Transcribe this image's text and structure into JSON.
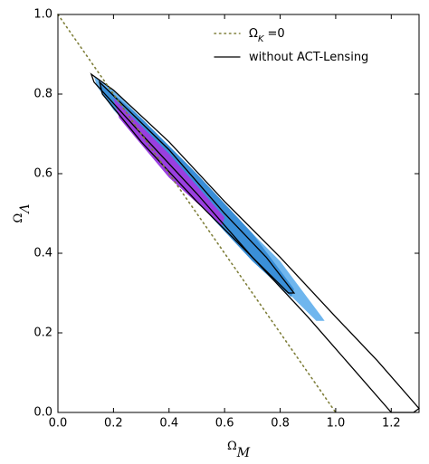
{
  "chart_data": {
    "type": "contour",
    "xlabel": {
      "symbol": "Ω",
      "subscript": "M"
    },
    "ylabel": {
      "symbol": "Ω",
      "subscript": "Λ"
    },
    "xlim": [
      0,
      1.3
    ],
    "ylim": [
      0,
      1.0
    ],
    "xticks": [
      {
        "value": 0,
        "label": "0.0"
      },
      {
        "value": 0.2,
        "label": "0.2"
      },
      {
        "value": 0.4,
        "label": "0.4"
      },
      {
        "value": 0.6,
        "label": "0.6"
      },
      {
        "value": 0.8,
        "label": "0.8"
      },
      {
        "value": 1,
        "label": "1.0"
      },
      {
        "value": 1.2,
        "label": "1.2"
      }
    ],
    "yticks": [
      {
        "value": 0,
        "label": "0.0"
      },
      {
        "value": 0.2,
        "label": "0.2"
      },
      {
        "value": 0.4,
        "label": "0.4"
      },
      {
        "value": 0.6,
        "label": "0.6"
      },
      {
        "value": 0.8,
        "label": "0.8"
      },
      {
        "value": 1,
        "label": "1.0"
      }
    ],
    "legend": "upper right",
    "series": [
      {
        "style": "fill",
        "color": "#6fb6ee",
        "x": [
          0.13,
          0.2,
          0.4,
          0.6,
          0.8,
          0.95,
          0.96,
          0.93,
          0.8,
          0.6,
          0.4,
          0.2,
          0.14
        ],
        "y": [
          0.845,
          0.81,
          0.67,
          0.52,
          0.38,
          0.24,
          0.23,
          0.23,
          0.32,
          0.47,
          0.61,
          0.76,
          0.82
        ]
      },
      {
        "style": "fill",
        "color": "#3a8fd8",
        "x": [
          0.15,
          0.3,
          0.5,
          0.7,
          0.85,
          0.84,
          0.7,
          0.5,
          0.3,
          0.16
        ],
        "y": [
          0.83,
          0.74,
          0.6,
          0.45,
          0.31,
          0.29,
          0.38,
          0.53,
          0.69,
          0.8
        ]
      },
      {
        "style": "fill",
        "color": "#9a3fe0",
        "x": [
          0.2,
          0.4,
          0.6,
          0.59,
          0.4,
          0.22
        ],
        "y": [
          0.79,
          0.65,
          0.49,
          0.47,
          0.59,
          0.74
        ]
      },
      {
        "style": "line",
        "color": "#000000",
        "name": {
          "text": "without ACT-Lensing"
        },
        "x": [
          0.12,
          0.2,
          0.4,
          0.6,
          0.8,
          1.0,
          1.15,
          1.3,
          1.28,
          1.2,
          1.05,
          0.9,
          0.7,
          0.5,
          0.3,
          0.13
        ],
        "y": [
          0.85,
          0.81,
          0.68,
          0.53,
          0.39,
          0.24,
          0.13,
          0.01,
          0.0,
          0.0,
          0.12,
          0.24,
          0.39,
          0.55,
          0.7,
          0.83
        ]
      },
      {
        "style": "line",
        "color": "#000000",
        "x": [
          0.15,
          0.4,
          0.6,
          0.75,
          0.85,
          0.83,
          0.7,
          0.5,
          0.3,
          0.16
        ],
        "y": [
          0.83,
          0.66,
          0.5,
          0.39,
          0.3,
          0.3,
          0.39,
          0.53,
          0.68,
          0.8
        ]
      },
      {
        "style": "dotted",
        "color": "#7f7f3a",
        "name": {
          "symbol": "Ω",
          "subscript": "K",
          "suffix": " =0"
        },
        "x": [
          0,
          1
        ],
        "y": [
          1,
          0
        ]
      }
    ]
  }
}
